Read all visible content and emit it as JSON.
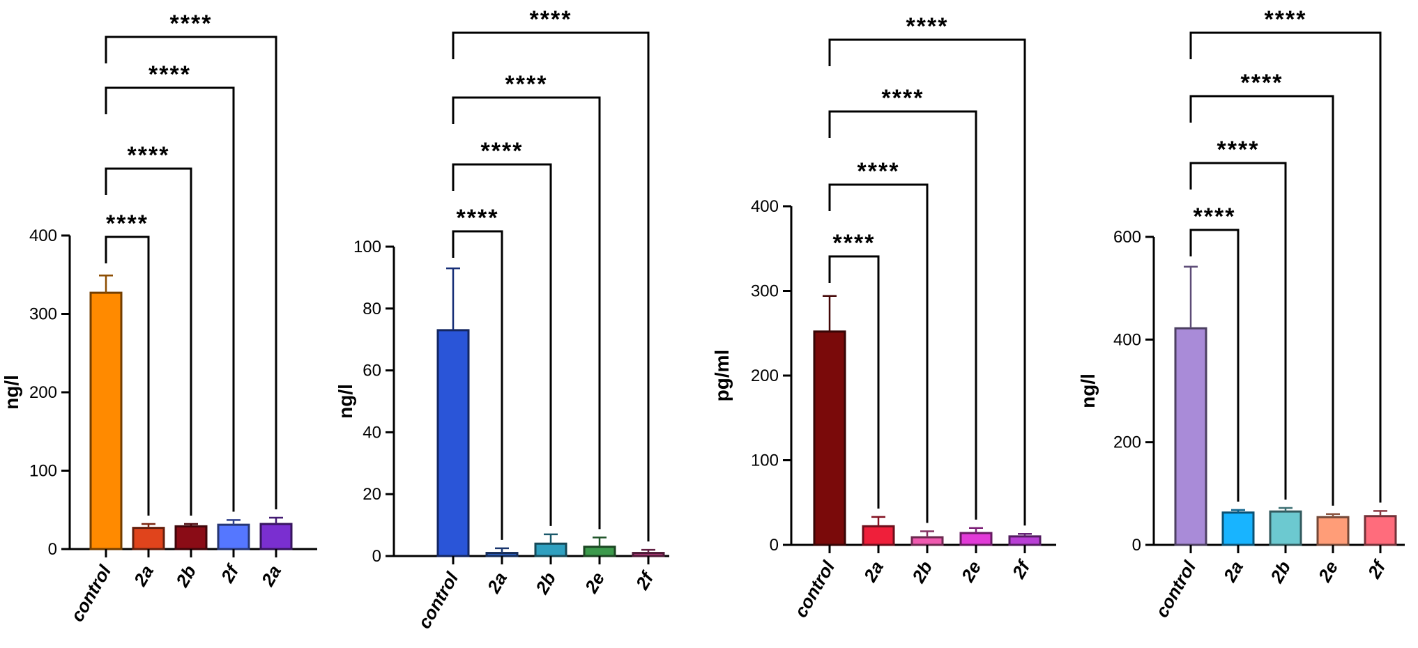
{
  "chart_data": [
    {
      "type": "bar",
      "ylabel": "ng/l",
      "ylim": [
        0,
        400
      ],
      "yticks": [
        0,
        100,
        200,
        300,
        400
      ],
      "categories": [
        "control",
        "2a",
        "2b",
        "2f",
        "2a"
      ],
      "values": [
        327,
        27,
        29,
        31,
        32
      ],
      "errors": [
        22,
        5,
        3,
        6,
        8
      ],
      "colors": [
        "#ff8a00",
        "#e0441c",
        "#8a0c16",
        "#5577ff",
        "#7a2fd0"
      ],
      "significance": [
        {
          "from": 0,
          "to": 1,
          "label": "****"
        },
        {
          "from": 0,
          "to": 2,
          "label": "****"
        },
        {
          "from": 0,
          "to": 3,
          "label": "****"
        },
        {
          "from": 0,
          "to": 4,
          "label": "****"
        }
      ],
      "grid": false
    },
    {
      "type": "bar",
      "ylabel": "ng/l",
      "ylim": [
        0,
        100
      ],
      "yticks": [
        0,
        20,
        40,
        60,
        80,
        100
      ],
      "categories": [
        "control",
        "2a",
        "2b",
        "2e",
        "2f"
      ],
      "values": [
        73,
        1,
        4,
        3,
        1
      ],
      "errors": [
        20,
        1.5,
        3,
        3,
        1
      ],
      "colors": [
        "#2a55d8",
        "#2f63c8",
        "#2fa0c0",
        "#3c9a4c",
        "#b03a7a"
      ],
      "significance": [
        {
          "from": 0,
          "to": 1,
          "label": "****"
        },
        {
          "from": 0,
          "to": 2,
          "label": "****"
        },
        {
          "from": 0,
          "to": 3,
          "label": "****"
        },
        {
          "from": 0,
          "to": 4,
          "label": "****"
        }
      ],
      "grid": false
    },
    {
      "type": "bar",
      "ylabel": "pg/ml",
      "ylim": [
        0,
        400
      ],
      "yticks": [
        0,
        100,
        200,
        300,
        400
      ],
      "categories": [
        "control",
        "2a",
        "2b",
        "2e",
        "2f"
      ],
      "values": [
        252,
        22,
        9,
        14,
        10
      ],
      "errors": [
        42,
        11,
        7,
        6,
        3
      ],
      "colors": [
        "#7a0a0a",
        "#ef1f3a",
        "#f05ab0",
        "#e23ad8",
        "#b93fd6"
      ],
      "significance": [
        {
          "from": 0,
          "to": 1,
          "label": "****"
        },
        {
          "from": 0,
          "to": 2,
          "label": "****"
        },
        {
          "from": 0,
          "to": 3,
          "label": "****"
        },
        {
          "from": 0,
          "to": 4,
          "label": "****"
        }
      ],
      "grid": false
    },
    {
      "type": "bar",
      "ylabel": "ng/l",
      "ylim": [
        0,
        600
      ],
      "yticks": [
        0,
        200,
        400,
        600
      ],
      "categories": [
        "control",
        "2a",
        "2b",
        "2e",
        "2f"
      ],
      "values": [
        422,
        63,
        65,
        54,
        56
      ],
      "errors": [
        120,
        5,
        7,
        6,
        10
      ],
      "colors": [
        "#a98bd8",
        "#18b4ff",
        "#6cc9d0",
        "#ff9d78",
        "#ff6c7c"
      ],
      "significance": [
        {
          "from": 0,
          "to": 1,
          "label": "****"
        },
        {
          "from": 0,
          "to": 2,
          "label": "****"
        },
        {
          "from": 0,
          "to": 3,
          "label": "****"
        },
        {
          "from": 0,
          "to": 4,
          "label": "****"
        }
      ],
      "grid": false
    }
  ]
}
